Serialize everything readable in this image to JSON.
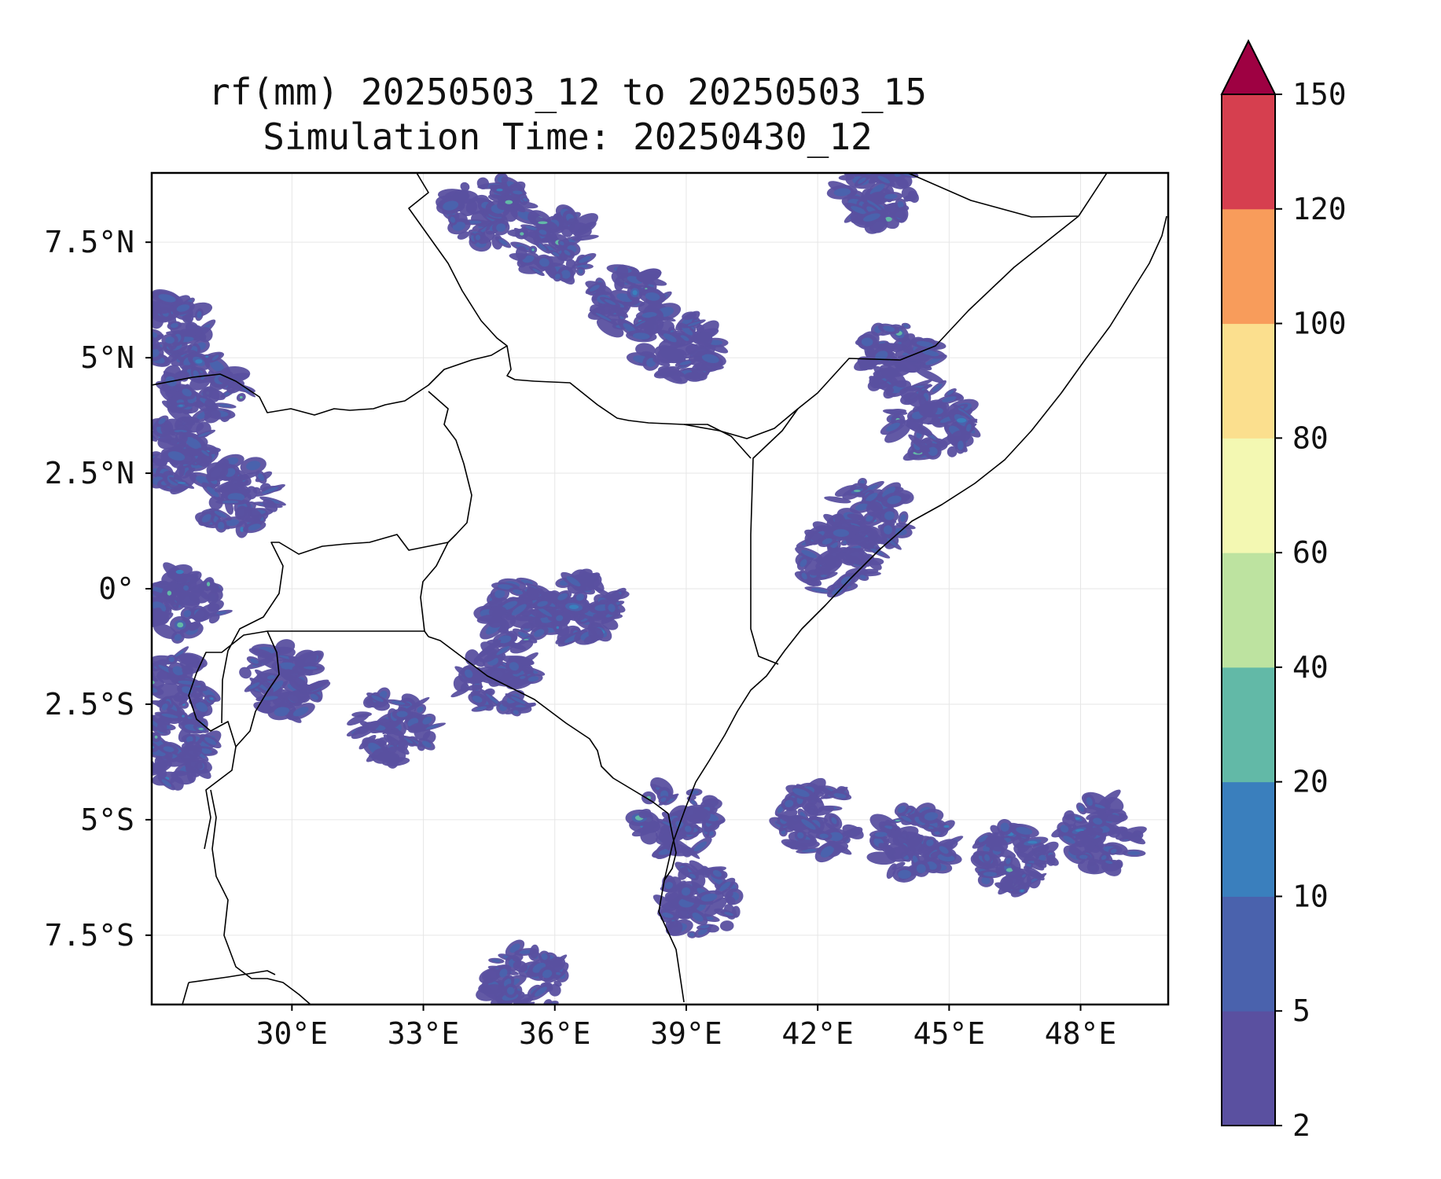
{
  "title": {
    "line1": "rf(mm) 20250503_12 to 20250503_15",
    "line2": "Simulation Time: 20250430_12"
  },
  "map": {
    "lon_range": [
      26.8,
      50.0
    ],
    "lat_range": [
      -9.0,
      9.0
    ],
    "x_ticks": [
      {
        "lon": 30,
        "label": "30°E"
      },
      {
        "lon": 33,
        "label": "33°E"
      },
      {
        "lon": 36,
        "label": "36°E"
      },
      {
        "lon": 39,
        "label": "39°E"
      },
      {
        "lon": 42,
        "label": "42°E"
      },
      {
        "lon": 45,
        "label": "45°E"
      },
      {
        "lon": 48,
        "label": "48°E"
      }
    ],
    "y_ticks": [
      {
        "lat": 7.5,
        "label": "7.5°N"
      },
      {
        "lat": 5,
        "label": "5°N"
      },
      {
        "lat": 2.5,
        "label": "2.5°N"
      },
      {
        "lat": 0,
        "label": "0°"
      },
      {
        "lat": -2.5,
        "label": "2.5°S"
      },
      {
        "lat": -5,
        "label": "5°S"
      },
      {
        "lat": -7.5,
        "label": "7.5°S"
      }
    ],
    "gridlines": true
  },
  "colorbar": {
    "extend": "max",
    "levels": [
      "2",
      "5",
      "10",
      "20",
      "40",
      "60",
      "80",
      "100",
      "120",
      "150"
    ],
    "colors": [
      "#5a50a0",
      "#4a62ad",
      "#3a7fbd",
      "#62b9a7",
      "#bde3a0",
      "#f3f8b2",
      "#fbdf8e",
      "#f89c5b",
      "#d63f4f"
    ],
    "extend_color": "#9e0142"
  },
  "chart_data": {
    "type": "heatmap",
    "variable": "rf(mm)",
    "colorbar_ticks": [
      2,
      5,
      10,
      20,
      40,
      60,
      80,
      100,
      120,
      150
    ],
    "rain_areas": [
      {
        "lon": 27.3,
        "lat": 5.6,
        "class": 2
      },
      {
        "lon": 28.0,
        "lat": 4.3,
        "class": 2
      },
      {
        "lon": 27.3,
        "lat": 3.0,
        "class": 2
      },
      {
        "lon": 28.7,
        "lat": 2.0,
        "class": 2
      },
      {
        "lon": 27.5,
        "lat": -0.3,
        "class": 2
      },
      {
        "lon": 27.3,
        "lat": -2.2,
        "class": 2
      },
      {
        "lon": 27.3,
        "lat": -3.5,
        "class": 2
      },
      {
        "lon": 29.8,
        "lat": -2.0,
        "class": 1
      },
      {
        "lon": 34.5,
        "lat": 8.2,
        "class": 2
      },
      {
        "lon": 36.0,
        "lat": 7.4,
        "class": 2
      },
      {
        "lon": 37.7,
        "lat": 6.2,
        "class": 2
      },
      {
        "lon": 38.8,
        "lat": 5.2,
        "class": 1
      },
      {
        "lon": 43.3,
        "lat": 8.6,
        "class": 2
      },
      {
        "lon": 43.8,
        "lat": 5.0,
        "class": 2
      },
      {
        "lon": 44.6,
        "lat": 3.6,
        "class": 2
      },
      {
        "lon": 43.2,
        "lat": 1.6,
        "class": 2
      },
      {
        "lon": 42.5,
        "lat": 0.6,
        "class": 1
      },
      {
        "lon": 35.3,
        "lat": -0.6,
        "class": 2
      },
      {
        "lon": 36.6,
        "lat": -0.4,
        "class": 2
      },
      {
        "lon": 34.7,
        "lat": -2.0,
        "class": 1
      },
      {
        "lon": 38.8,
        "lat": -5.0,
        "class": 2
      },
      {
        "lon": 39.3,
        "lat": -6.8,
        "class": 1
      },
      {
        "lon": 42.0,
        "lat": -5.0,
        "class": 1
      },
      {
        "lon": 44.2,
        "lat": -5.5,
        "class": 2
      },
      {
        "lon": 46.5,
        "lat": -5.8,
        "class": 2
      },
      {
        "lon": 48.5,
        "lat": -5.3,
        "class": 2
      },
      {
        "lon": 32.3,
        "lat": -3.0,
        "class": 1
      },
      {
        "lon": 35.3,
        "lat": -8.5,
        "class": 1
      }
    ]
  }
}
